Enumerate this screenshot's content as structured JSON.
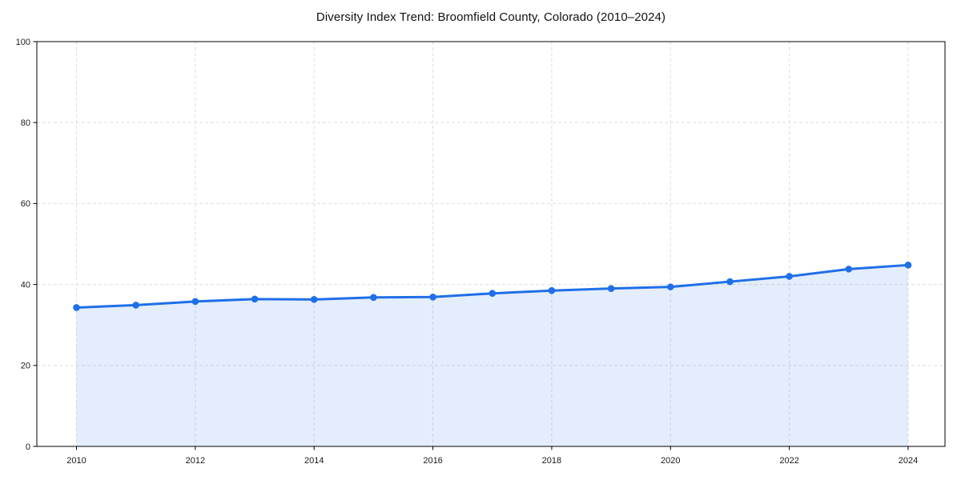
{
  "figure": {
    "background": "#ffffff"
  },
  "chart_data": {
    "type": "line",
    "area_fill": true,
    "title": "Diversity Index Trend: Broomfield County, Colorado (2010–2024)",
    "x": [
      2010,
      2011,
      2012,
      2013,
      2014,
      2015,
      2016,
      2017,
      2018,
      2019,
      2020,
      2021,
      2022,
      2023,
      2024
    ],
    "series": [
      {
        "name": "Diversity Index",
        "values": [
          34.3,
          34.9,
          35.8,
          36.4,
          36.3,
          36.8,
          36.9,
          37.8,
          38.5,
          39.0,
          39.4,
          40.7,
          42.0,
          43.8,
          44.8
        ]
      }
    ],
    "xlabel": "",
    "ylabel": "",
    "ylim": [
      0,
      100
    ],
    "xticks": [
      2010,
      2012,
      2014,
      2016,
      2018,
      2020,
      2022,
      2024
    ],
    "yticks": [
      0,
      20,
      40,
      60,
      80,
      100
    ],
    "grid": true,
    "grid_style": "dashed",
    "legend": "none",
    "marker": "circle",
    "colors": {
      "line": "#1f6fe8",
      "fill": "rgba(31,111,232,0.12)",
      "grid": "#dedede",
      "axis": "#000000",
      "tick_text": "#1a1a1a"
    }
  }
}
